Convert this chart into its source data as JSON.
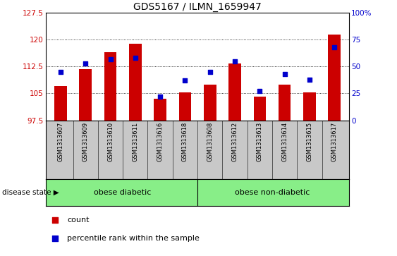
{
  "title": "GDS5167 / ILMN_1659947",
  "samples": [
    "GSM1313607",
    "GSM1313609",
    "GSM1313610",
    "GSM1313611",
    "GSM1313616",
    "GSM1313618",
    "GSM1313608",
    "GSM1313612",
    "GSM1313613",
    "GSM1313614",
    "GSM1313615",
    "GSM1313617"
  ],
  "counts": [
    107.0,
    111.8,
    116.5,
    118.8,
    103.5,
    105.2,
    107.5,
    113.3,
    104.2,
    107.5,
    105.2,
    121.5
  ],
  "percentiles": [
    45,
    53,
    57,
    58,
    22,
    37,
    45,
    55,
    27,
    43,
    38,
    68
  ],
  "ylim_left": [
    97.5,
    127.5
  ],
  "ylim_right": [
    0,
    100
  ],
  "yticks_left": [
    97.5,
    105.0,
    112.5,
    120.0,
    127.5
  ],
  "yticks_right": [
    0,
    25,
    50,
    75,
    100
  ],
  "bar_color": "#cc0000",
  "marker_color": "#0000cc",
  "bar_bottom": 97.5,
  "grid_lines": [
    105.0,
    112.5,
    120.0
  ],
  "n_diabetic": 6,
  "n_nondiabetic": 6,
  "label_diabetic": "obese diabetic",
  "label_nondiabetic": "obese non-diabetic",
  "disease_state_label": "disease state",
  "legend_count": "count",
  "legend_percentile": "percentile rank within the sample",
  "tick_label_color_left": "#cc0000",
  "tick_label_color_right": "#0000cc",
  "group_bg_color": "#88ee88",
  "bar_width": 0.5,
  "xlabels_bg": "#c8c8c8"
}
